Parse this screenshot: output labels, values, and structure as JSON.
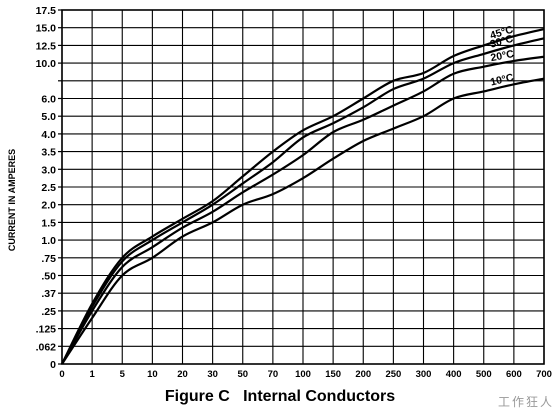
{
  "chart_data": {
    "type": "line",
    "title": "Figure C   Internal Conductors",
    "ylabel": "CURRENT IN AMPERES",
    "xlabel": "",
    "ylim": [
      0,
      17.5
    ],
    "xlim": [
      0,
      700
    ],
    "grid": true,
    "y_ticks": [
      {
        "v": 17.5,
        "label": "17.5"
      },
      {
        "v": 15.0,
        "label": "15.0"
      },
      {
        "v": 12.5,
        "label": "12.5"
      },
      {
        "v": 10.0,
        "label": "10.0"
      },
      {
        "v": 7.5,
        "label": ""
      },
      {
        "v": 6.0,
        "label": "6.0"
      },
      {
        "v": 5.0,
        "label": "5.0"
      },
      {
        "v": 4.0,
        "label": "4.0"
      },
      {
        "v": 3.5,
        "label": "3.5"
      },
      {
        "v": 3.0,
        "label": "3.0"
      },
      {
        "v": 2.5,
        "label": "2.5"
      },
      {
        "v": 2.0,
        "label": "2.0"
      },
      {
        "v": 1.5,
        "label": "1.5"
      },
      {
        "v": 1.0,
        "label": "1.0"
      },
      {
        "v": 0.75,
        "label": ".75"
      },
      {
        "v": 0.5,
        "label": ".50"
      },
      {
        "v": 0.375,
        "label": ".37"
      },
      {
        "v": 0.25,
        "label": ".25"
      },
      {
        "v": 0.125,
        "label": ".125"
      },
      {
        "v": 0.062,
        "label": ".062"
      },
      {
        "v": 0,
        "label": "0"
      }
    ],
    "x_ticks": [
      {
        "v": 0,
        "label": "0"
      },
      {
        "v": 1,
        "label": "1"
      },
      {
        "v": 5,
        "label": "5"
      },
      {
        "v": 10,
        "label": "10"
      },
      {
        "v": 20,
        "label": "20"
      },
      {
        "v": 30,
        "label": "30"
      },
      {
        "v": 50,
        "label": "50"
      },
      {
        "v": 70,
        "label": "70"
      },
      {
        "v": 100,
        "label": "100"
      },
      {
        "v": 150,
        "label": "150"
      },
      {
        "v": 200,
        "label": "200"
      },
      {
        "v": 250,
        "label": "250"
      },
      {
        "v": 300,
        "label": "300"
      },
      {
        "v": 400,
        "label": "400"
      },
      {
        "v": 500,
        "label": "500"
      },
      {
        "v": 600,
        "label": "600"
      },
      {
        "v": 700,
        "label": "700"
      }
    ],
    "series": [
      {
        "name": "45°C",
        "points": [
          [
            0,
            0
          ],
          [
            1,
            0.3
          ],
          [
            5,
            0.75
          ],
          [
            10,
            1.1
          ],
          [
            20,
            1.6
          ],
          [
            30,
            2.1
          ],
          [
            50,
            2.8
          ],
          [
            70,
            3.5
          ],
          [
            100,
            4.2
          ],
          [
            150,
            5.0
          ],
          [
            200,
            6.0
          ],
          [
            250,
            7.5
          ],
          [
            300,
            8.6
          ],
          [
            400,
            11.0
          ],
          [
            500,
            12.5
          ],
          [
            600,
            13.8
          ],
          [
            700,
            14.8
          ]
        ]
      },
      {
        "name": "30°C",
        "points": [
          [
            0,
            0
          ],
          [
            1,
            0.28
          ],
          [
            5,
            0.7
          ],
          [
            10,
            1.0
          ],
          [
            20,
            1.5
          ],
          [
            30,
            2.0
          ],
          [
            50,
            2.6
          ],
          [
            70,
            3.2
          ],
          [
            100,
            3.9
          ],
          [
            150,
            4.6
          ],
          [
            200,
            5.5
          ],
          [
            250,
            6.8
          ],
          [
            300,
            7.8
          ],
          [
            400,
            10.0
          ],
          [
            500,
            11.3
          ],
          [
            600,
            12.5
          ],
          [
            700,
            13.5
          ]
        ]
      },
      {
        "name": "20°C",
        "points": [
          [
            0,
            0
          ],
          [
            1,
            0.25
          ],
          [
            5,
            0.62
          ],
          [
            10,
            0.9
          ],
          [
            20,
            1.35
          ],
          [
            30,
            1.8
          ],
          [
            50,
            2.35
          ],
          [
            70,
            2.85
          ],
          [
            100,
            3.4
          ],
          [
            150,
            4.1
          ],
          [
            200,
            4.8
          ],
          [
            250,
            5.6
          ],
          [
            300,
            6.6
          ],
          [
            400,
            8.5
          ],
          [
            500,
            9.5
          ],
          [
            600,
            10.3
          ],
          [
            700,
            10.9
          ]
        ]
      },
      {
        "name": "10°C",
        "points": [
          [
            0,
            0
          ],
          [
            1,
            0.2
          ],
          [
            5,
            0.5
          ],
          [
            10,
            0.75
          ],
          [
            20,
            1.1
          ],
          [
            30,
            1.5
          ],
          [
            50,
            2.0
          ],
          [
            70,
            2.3
          ],
          [
            100,
            2.75
          ],
          [
            150,
            3.3
          ],
          [
            200,
            3.8
          ],
          [
            250,
            4.3
          ],
          [
            300,
            5.0
          ],
          [
            400,
            6.0
          ],
          [
            500,
            6.6
          ],
          [
            600,
            7.2
          ],
          [
            700,
            7.8
          ]
        ]
      }
    ]
  },
  "watermark": "工作狂人"
}
